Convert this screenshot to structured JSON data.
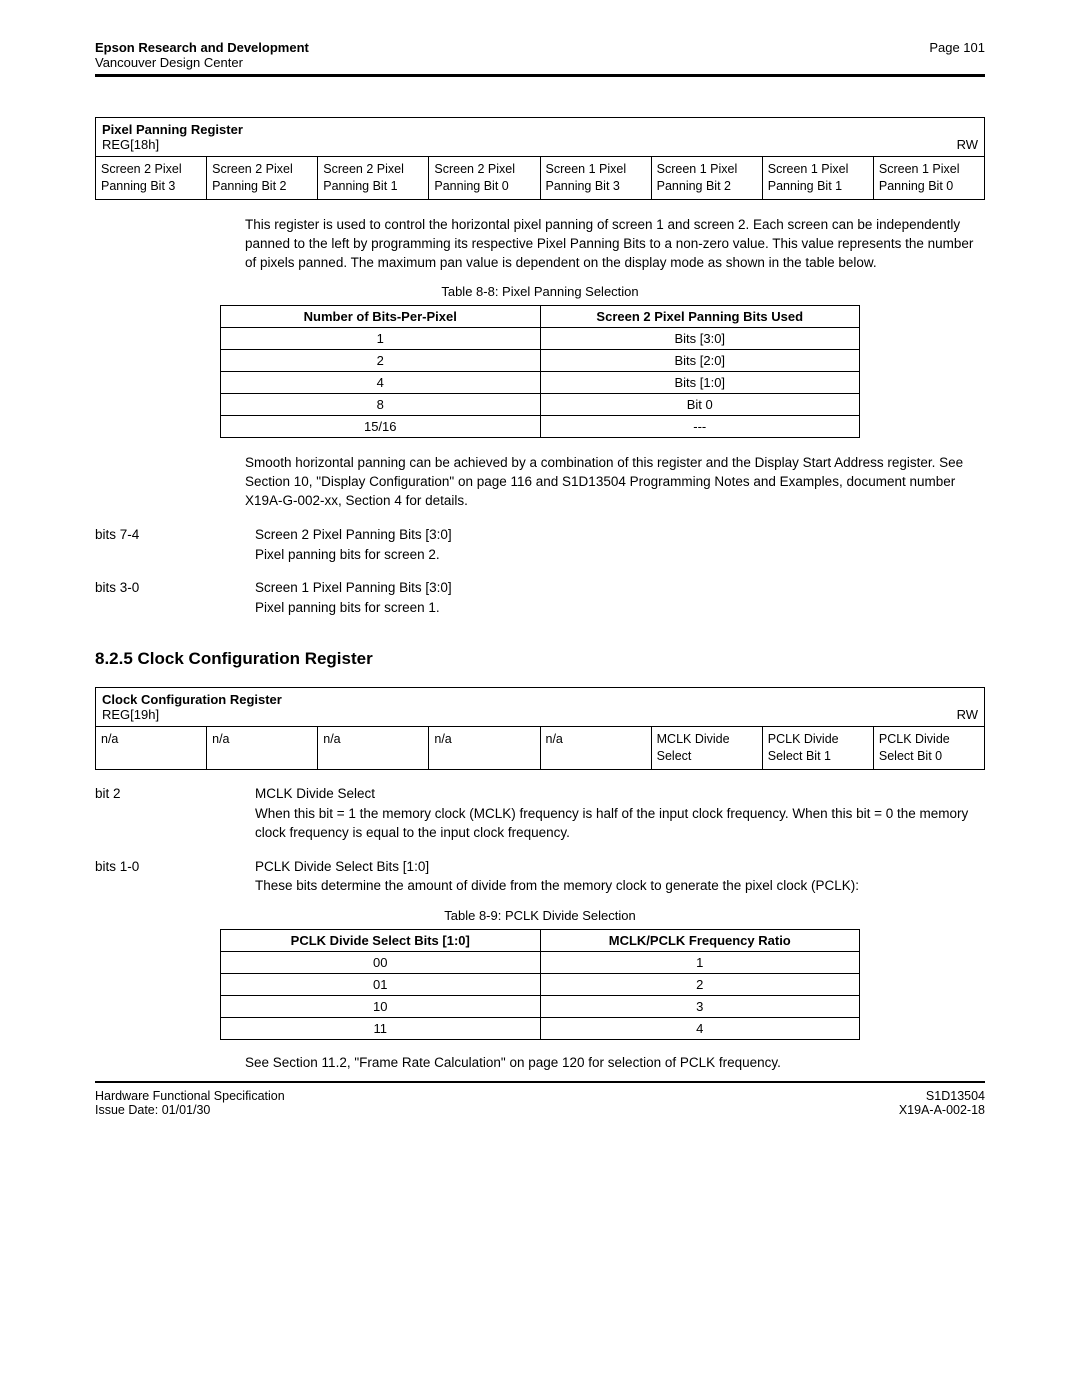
{
  "header": {
    "company": "Epson Research and Development",
    "subunit": "Vancouver Design Center",
    "page_label": "Page 101"
  },
  "reg1": {
    "title": "Pixel Panning Register",
    "code": "REG[18h]",
    "rw": "RW",
    "bits": [
      "Screen 2 Pixel Panning Bit 3",
      "Screen 2 Pixel Panning Bit 2",
      "Screen 2 Pixel Panning Bit 1",
      "Screen 2 Pixel Panning Bit 0",
      "Screen 1 Pixel Panning Bit 3",
      "Screen 1 Pixel Panning Bit 2",
      "Screen 1 Pixel Panning Bit 1",
      "Screen 1 Pixel Panning Bit 0"
    ]
  },
  "para1": "This register is used to control the horizontal pixel panning of screen 1 and screen 2. Each screen can be independently panned to the left by programming its respective Pixel Panning Bits to a non-zero value. This value represents the number of pixels panned. The maximum pan value is dependent on the display mode as shown in the table below.",
  "t88": {
    "caption": "Table 8-8: Pixel Panning Selection",
    "headers": [
      "Number of Bits-Per-Pixel",
      "Screen 2 Pixel Panning Bits Used"
    ],
    "rows": [
      [
        "1",
        "Bits [3:0]"
      ],
      [
        "2",
        "Bits [2:0]"
      ],
      [
        "4",
        "Bits [1:0]"
      ],
      [
        "8",
        "Bit 0"
      ],
      [
        "15/16",
        "---"
      ]
    ]
  },
  "para2": "Smooth horizontal panning can be achieved by a combination of this register and the Display Start Address register. See Section 10, \"Display Configuration\" on page 116 and S1D13504 Programming Notes and Examples, document number X19A-G-002-xx, Section 4 for details.",
  "bitdesc1": {
    "label": "bits 7-4",
    "title": "Screen 2 Pixel Panning Bits [3:0]",
    "text": "Pixel panning bits for screen 2."
  },
  "bitdesc2": {
    "label": "bits 3-0",
    "title": "Screen 1 Pixel Panning Bits [3:0]",
    "text": "Pixel panning bits for screen 1."
  },
  "section_heading": "8.2.5   Clock Configuration Register",
  "reg2": {
    "title": "Clock Configuration Register",
    "code": "REG[19h]",
    "rw": "RW",
    "bits": [
      "n/a",
      "n/a",
      "n/a",
      "n/a",
      "n/a",
      "MCLK Divide Select",
      "PCLK Divide Select Bit 1",
      "PCLK Divide Select Bit 0"
    ]
  },
  "bitdesc3": {
    "label": "bit 2",
    "title": "MCLK Divide Select",
    "text": "When this bit = 1 the memory clock (MCLK) frequency is half of the input clock frequency. When this bit = 0 the memory clock frequency is equal to the input clock frequency."
  },
  "bitdesc4": {
    "label": "bits 1-0",
    "title": "PCLK Divide Select Bits [1:0]",
    "text": "These bits determine the amount of divide from the memory clock to generate the pixel clock (PCLK):"
  },
  "t89": {
    "caption": "Table 8-9: PCLK Divide Selection",
    "headers": [
      "PCLK Divide Select Bits [1:0]",
      "MCLK/PCLK Frequency Ratio"
    ],
    "rows": [
      [
        "00",
        "1"
      ],
      [
        "01",
        "2"
      ],
      [
        "10",
        "3"
      ],
      [
        "11",
        "4"
      ]
    ]
  },
  "final_note": "See Section 11.2, \"Frame Rate Calculation\" on page 120 for selection of PCLK frequency.",
  "footer": {
    "left_top": "Hardware Functional Specification",
    "left_bottom": "Issue Date: 01/01/30",
    "right_top": "S1D13504",
    "right_bottom": "X19A-A-002-18"
  }
}
